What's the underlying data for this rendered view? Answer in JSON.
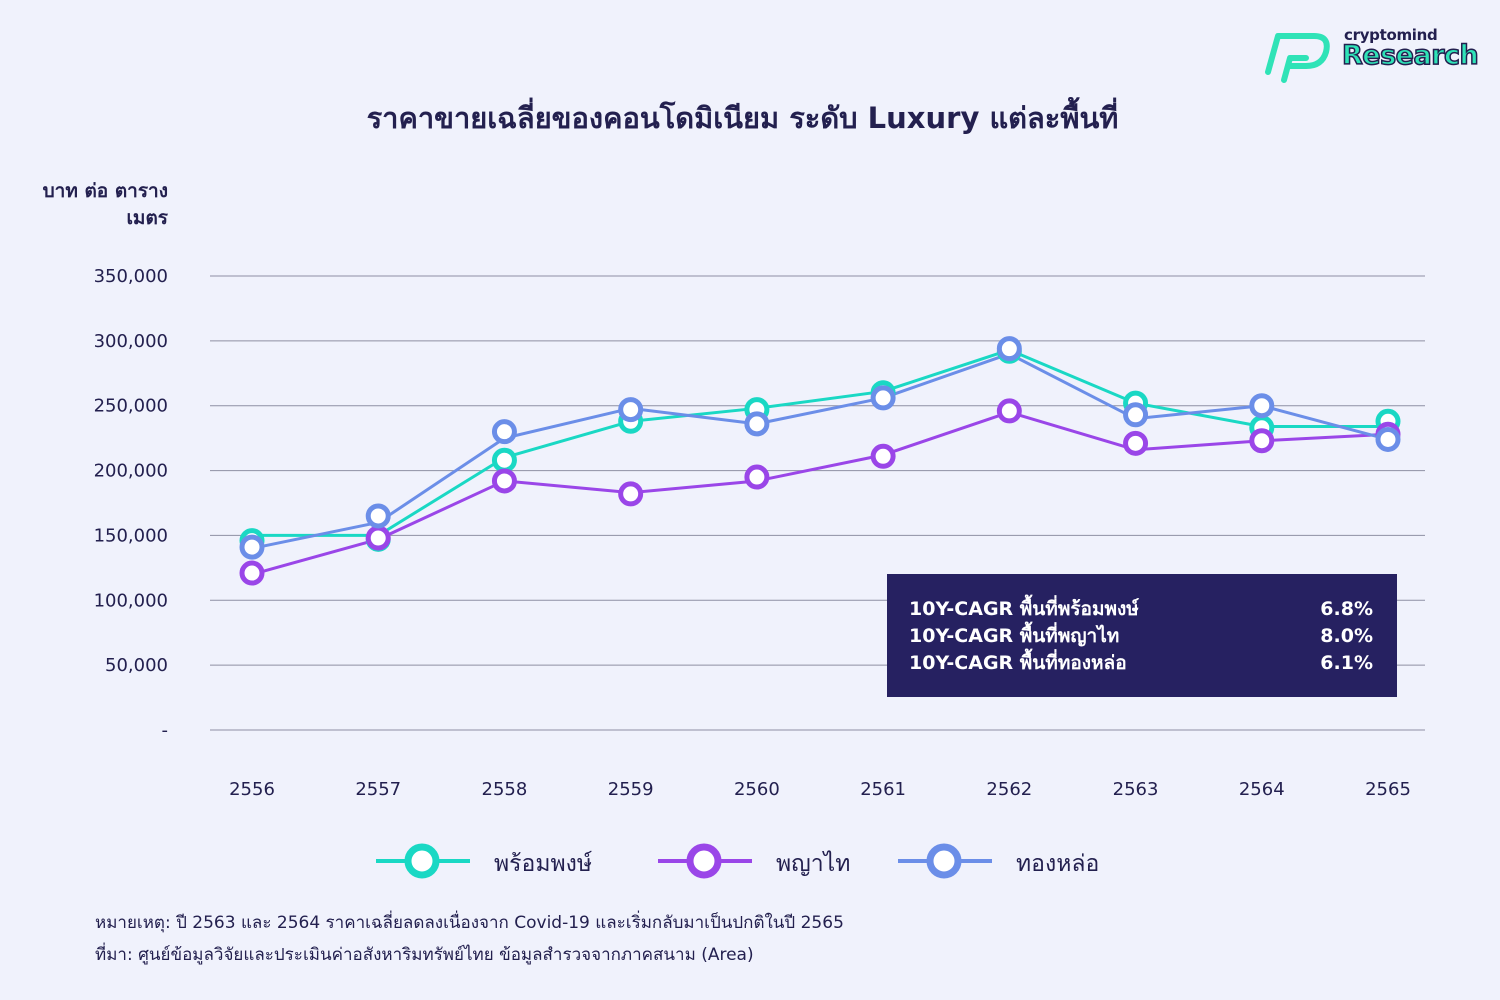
{
  "brand": {
    "top_text": "cryptomind",
    "bottom_text": "Research"
  },
  "colors": {
    "background": "#f0f2fc",
    "text": "#23204f",
    "grid": "#8e8fa3",
    "series_0": "#1ad8c4",
    "series_1": "#9a46e8",
    "series_2": "#6b8ee8",
    "box_bg": "#262161"
  },
  "chart_data": {
    "type": "line",
    "title": "ราคาขายเฉลี่ยของคอนโดมิเนียม ระดับ Luxury แต่ละพื้นที่",
    "ylabel": "บาท ต่อ ตารางเมตร",
    "xlabel": "",
    "categories": [
      "2556",
      "2557",
      "2558",
      "2559",
      "2560",
      "2561",
      "2562",
      "2563",
      "2564",
      "2565"
    ],
    "ylim": [
      0,
      350000
    ],
    "yticks": [
      0,
      50000,
      100000,
      150000,
      200000,
      250000,
      300000,
      350000
    ],
    "ytick_labels": [
      "-",
      "50,000",
      "100,000",
      "150,000",
      "200,000",
      "250,000",
      "300,000",
      "350,000"
    ],
    "grid": true,
    "legend_position": "bottom",
    "series": [
      {
        "name": "พร้อมพงษ์",
        "values": [
          150000,
          150000,
          210000,
          238000,
          248000,
          261000,
          293000,
          252000,
          234000,
          234000
        ],
        "markers": [
          146000,
          147000,
          208000,
          238000,
          247000,
          260000,
          292000,
          252000,
          233000,
          238000
        ]
      },
      {
        "name": "พญาไท",
        "values": [
          120000,
          147000,
          192000,
          183000,
          192000,
          212000,
          245000,
          216000,
          223000,
          228000
        ],
        "markers": [
          121000,
          148000,
          192000,
          182000,
          195000,
          211000,
          246000,
          221000,
          223000,
          228000
        ]
      },
      {
        "name": "ทองหล่อ",
        "values": [
          140000,
          160000,
          225000,
          248000,
          236000,
          256000,
          290000,
          240000,
          250000,
          224000
        ],
        "markers": [
          141000,
          165000,
          230000,
          247000,
          236000,
          256000,
          294000,
          243000,
          250000,
          224000
        ]
      }
    ],
    "annotations": [
      {
        "label": "10Y-CAGR พื้นที่พร้อมพงษ์",
        "value": "6.8%"
      },
      {
        "label": "10Y-CAGR พื้นที่พญาไท",
        "value": "8.0%"
      },
      {
        "label": "10Y-CAGR พื้นที่ทองหล่อ",
        "value": "6.1%"
      }
    ]
  },
  "footnotes": {
    "note": "หมายเหตุ: ปี 2563 และ 2564 ราคาเฉลี่ยลดลงเนื่องจาก Covid-19 และเริ่มกลับมาเป็นปกติในปี 2565",
    "source": "ที่มา: ศูนย์ข้อมูลวิจัยและประเมินค่าอสังหาริมทรัพย์ไทย ข้อมูลสำรวจจากภาคสนาม (Area)"
  }
}
